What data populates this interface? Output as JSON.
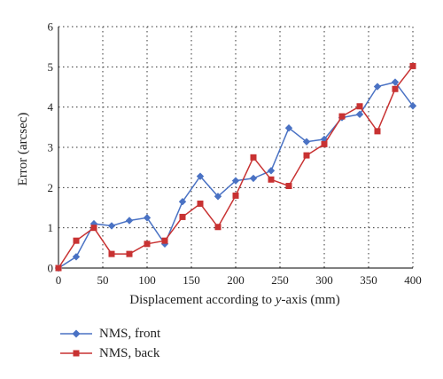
{
  "chart_data": {
    "type": "line",
    "title": "",
    "xlabel_parts": [
      "Displacement according to ",
      "y",
      "-axis (mm)"
    ],
    "ylabel": "Error (arcsec)",
    "xlim": [
      0,
      400
    ],
    "ylim": [
      0,
      6
    ],
    "xticks": [
      0,
      50,
      100,
      150,
      200,
      250,
      300,
      350,
      400
    ],
    "yticks": [
      0,
      1,
      2,
      3,
      4,
      5,
      6
    ],
    "grid": true,
    "legend_position": "bottom-left",
    "x": [
      0,
      20,
      40,
      60,
      80,
      100,
      120,
      140,
      160,
      180,
      200,
      220,
      240,
      260,
      280,
      300,
      320,
      340,
      360,
      380,
      400
    ],
    "series": [
      {
        "name": "NMS, front",
        "color": "#4a72c4",
        "marker": "diamond",
        "values": [
          0,
          0.28,
          1.1,
          1.05,
          1.18,
          1.25,
          0.6,
          1.65,
          2.28,
          1.78,
          2.17,
          2.23,
          2.42,
          3.48,
          3.14,
          3.2,
          3.74,
          3.82,
          4.51,
          4.62,
          4.03
        ]
      },
      {
        "name": "NMS, back",
        "color": "#c83232",
        "marker": "square",
        "values": [
          0,
          0.68,
          1.0,
          0.35,
          0.35,
          0.6,
          0.68,
          1.27,
          1.6,
          1.02,
          1.8,
          2.75,
          2.2,
          2.04,
          2.8,
          3.08,
          3.77,
          4.02,
          3.4,
          4.45,
          5.02
        ]
      }
    ]
  }
}
